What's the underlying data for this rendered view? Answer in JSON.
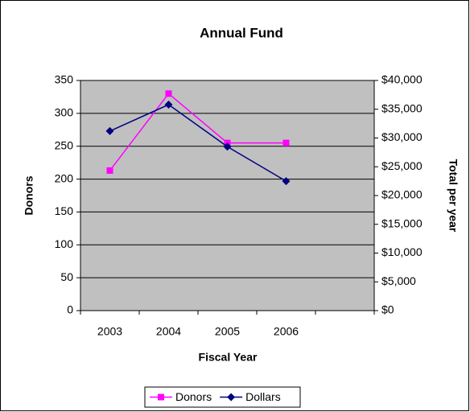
{
  "chart_data": {
    "type": "line",
    "title": "Annual Fund",
    "x_label": "Fiscal Year",
    "y_label": "Donors",
    "y2_label": "Total per year",
    "categories": [
      "2003",
      "2004",
      "2005",
      "2006",
      null
    ],
    "series": [
      {
        "name": "Donors",
        "color": "#ff00ff",
        "marker": "square",
        "values": [
          213,
          330,
          255,
          255,
          null
        ]
      },
      {
        "name": "Dollars",
        "color": "#000080",
        "marker": "diamond",
        "axis": "y2",
        "values": [
          31200,
          35800,
          28500,
          22500,
          null
        ]
      }
    ],
    "ylim": [
      0,
      350
    ],
    "yticks": [
      0,
      50,
      100,
      150,
      200,
      250,
      300,
      350
    ],
    "y2lim": [
      0,
      40000
    ],
    "y2ticks": [
      {
        "value": 0,
        "label": "$0"
      },
      {
        "value": 5000,
        "label": "$5,000"
      },
      {
        "value": 10000,
        "label": "$10,000"
      },
      {
        "value": 15000,
        "label": "$15,000"
      },
      {
        "value": 20000,
        "label": "$20,000"
      },
      {
        "value": 25000,
        "label": "$25,000"
      },
      {
        "value": 30000,
        "label": "$30,000"
      },
      {
        "value": 35000,
        "label": "$35,000"
      },
      {
        "value": 40000,
        "label": "$40,000"
      }
    ],
    "grid": true,
    "plot_background": "#c0c0c0",
    "legend": "bottom"
  }
}
